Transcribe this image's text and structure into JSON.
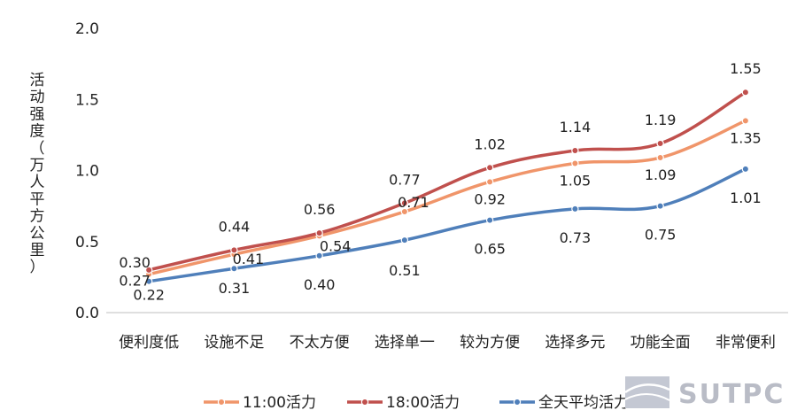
{
  "chart_data": {
    "type": "line",
    "categories": [
      "便利度低",
      "设施不足",
      "不太方便",
      "选择单一",
      "较为方便",
      "选择多元",
      "功能全面",
      "非常便利"
    ],
    "series": [
      {
        "name": "11:00活力",
        "color": "#f0956a",
        "values": [
          0.27,
          0.41,
          0.54,
          0.71,
          0.92,
          1.05,
          1.09,
          1.35
        ]
      },
      {
        "name": "18:00活力",
        "color": "#c0504d",
        "values": [
          0.3,
          0.44,
          0.56,
          0.77,
          1.02,
          1.14,
          1.19,
          1.55
        ]
      },
      {
        "name": "全天平均活力",
        "color": "#4f7fba",
        "values": [
          0.22,
          0.31,
          0.4,
          0.51,
          0.65,
          0.73,
          0.75,
          1.01
        ]
      }
    ],
    "data_labels": {
      "11:00活力": [
        "0.27",
        "0.41",
        "0.54",
        "0.71",
        "0.92",
        "1.05",
        "1.09",
        "1.35"
      ],
      "18:00活力": [
        "0.30",
        "0.44",
        "0.56",
        "0.77",
        "1.02",
        "1.14",
        "1.19",
        "1.55"
      ],
      "全天平均活力": [
        "0.22",
        "0.31",
        "0.40",
        "0.51",
        "0.65",
        "0.73",
        "0.75",
        "1.01"
      ]
    },
    "ylabel": "活动强度（万人/平方公里）",
    "ylabel_chars": [
      "活",
      "动",
      "强",
      "度",
      "（",
      "万",
      "人",
      "平",
      "方",
      "公",
      "里",
      "）"
    ],
    "ylim": [
      0,
      2.0
    ],
    "yticks": [
      "0.0",
      "0.5",
      "1.0",
      "1.5",
      "2.0"
    ],
    "grid": false,
    "legend_position": "bottom"
  },
  "watermark": {
    "text": "SUTPC"
  }
}
